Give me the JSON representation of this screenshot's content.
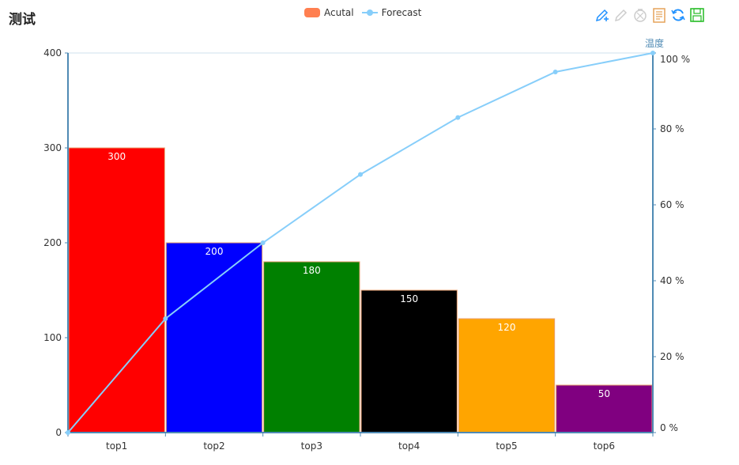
{
  "title": "测试",
  "legend": [
    {
      "name": "Acutal",
      "kind": "bar",
      "color": "#ff7f50"
    },
    {
      "name": "Forecast",
      "kind": "line",
      "color": "#87cefa"
    }
  ],
  "toolbox": [
    {
      "name": "mark-icon",
      "color": "#1e90ff"
    },
    {
      "name": "mark-undo-icon",
      "color": "#cccccc"
    },
    {
      "name": "mark-clear-icon",
      "color": "#cccccc"
    },
    {
      "name": "data-view-icon",
      "color": "#e5a35a"
    },
    {
      "name": "restore-icon",
      "color": "#1e90ff"
    },
    {
      "name": "save-as-image-icon",
      "color": "#22bb22"
    }
  ],
  "chart_data": {
    "type": "bar",
    "categories": [
      "top1",
      "top2",
      "top3",
      "top4",
      "top5",
      "top6"
    ],
    "series": [
      {
        "name": "Acutal",
        "type": "bar",
        "values": [
          300,
          200,
          180,
          150,
          120,
          50
        ],
        "colors": [
          "#ff0000",
          "#0000ff",
          "#008000",
          "#000000",
          "#ffa500",
          "#800080"
        ],
        "labels": [
          "300",
          "200",
          "180",
          "150",
          "120",
          "50"
        ]
      },
      {
        "name": "Forecast",
        "type": "line",
        "axis": "right",
        "x": [
          0.5,
          1,
          2,
          3,
          4,
          5,
          6
        ],
        "values": [
          0,
          30,
          50,
          68,
          83,
          95,
          100
        ],
        "color": "#87cefa"
      }
    ],
    "yaxis_left": {
      "min": 0,
      "max": 400,
      "ticks": [
        "0",
        "100",
        "200",
        "300",
        "400"
      ]
    },
    "yaxis_right": {
      "name": "温度",
      "min": 0,
      "max": 100,
      "ticks": [
        "0 %",
        "20 %",
        "40 %",
        "60 %",
        "80 %",
        "100 %"
      ]
    },
    "grid": false,
    "legend_position": "top-center"
  }
}
